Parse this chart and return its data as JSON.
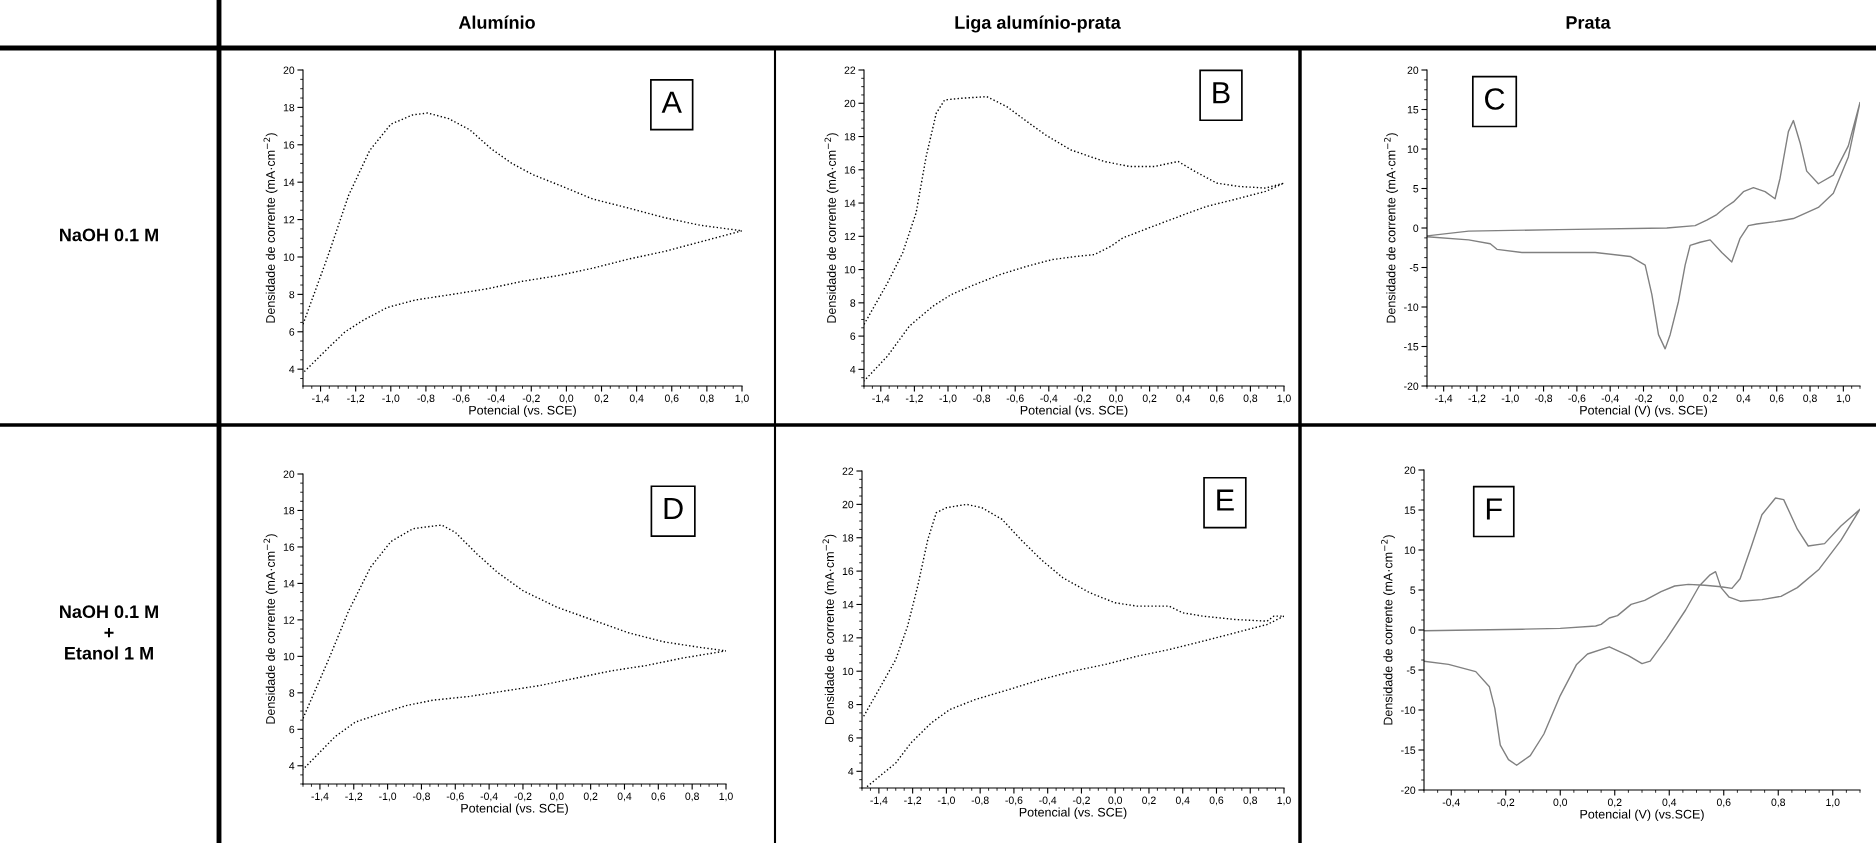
{
  "chart_data": [
    {
      "type": "line",
      "title": "Alumínio",
      "xlabel": "Potencial (vs. SCE)",
      "ylabel": "Densidade de corrente (mA·cm$^{−2}$)",
      "annotations": [
        "A",
        "NaOH 0.1 M"
      ],
      "line_style": "dotted",
      "xlim": [
        -1.5,
        1.0
      ],
      "ylim": [
        3.1,
        20
      ],
      "xticks": [
        {
          "value": -1.4,
          "label": "-1,4"
        },
        {
          "value": -1.2,
          "label": "-1,2"
        },
        {
          "value": -1.0,
          "label": "-1,0"
        },
        {
          "value": -0.8,
          "label": "-0,8"
        },
        {
          "value": -0.6,
          "label": "-0,6"
        },
        {
          "value": -0.4,
          "label": "-0,4"
        },
        {
          "value": -0.2,
          "label": "-0,2"
        },
        {
          "value": 0.0,
          "label": "0,0"
        },
        {
          "value": 0.2,
          "label": "0,2"
        },
        {
          "value": 0.4,
          "label": "0,4"
        },
        {
          "value": 0.6,
          "label": "0,6"
        },
        {
          "value": 0.8,
          "label": "0,8"
        },
        {
          "value": 1.0,
          "label": "1,0"
        }
      ],
      "yticks": [
        4,
        6,
        8,
        10,
        12,
        14,
        16,
        18,
        20
      ],
      "series": [
        {
          "color": "#000000",
          "x": [
            -1.5,
            -1.36,
            -1.24,
            -1.12,
            -1.0,
            -0.875,
            -0.79,
            -0.67,
            -0.55,
            -0.43,
            -0.31,
            -0.19,
            -0.03,
            0.15,
            0.36,
            0.56,
            0.76,
            1.0,
            0.76,
            0.56,
            0.36,
            0.15,
            -0.05,
            -0.25,
            -0.45,
            -0.65,
            -0.86,
            -1.02,
            -1.16,
            -1.26,
            -1.36,
            -1.5
          ],
          "values": [
            6.4,
            10.0,
            13.3,
            15.7,
            17.1,
            17.6,
            17.7,
            17.4,
            16.8,
            15.8,
            15.0,
            14.4,
            13.8,
            13.1,
            12.6,
            12.1,
            11.7,
            11.4,
            10.8,
            10.3,
            9.9,
            9.4,
            9.0,
            8.7,
            8.3,
            8.0,
            7.7,
            7.3,
            6.6,
            6.0,
            5.1,
            3.8
          ]
        }
      ]
    },
    {
      "type": "line",
      "title": "Liga alumínio-prata",
      "xlabel": "Potencial (vs. SCE)",
      "ylabel": "Densidade de corrente (mA·cm$^{−2}$)",
      "annotations": [
        "B"
      ],
      "line_style": "dotted",
      "xlim": [
        -1.5,
        1.0
      ],
      "ylim": [
        3,
        22
      ],
      "xticks": [
        {
          "value": -1.4,
          "label": "-1,4"
        },
        {
          "value": -1.2,
          "label": "-1,2"
        },
        {
          "value": -1.0,
          "label": "-1,0"
        },
        {
          "value": -0.8,
          "label": "-0,8"
        },
        {
          "value": -0.6,
          "label": "-0,6"
        },
        {
          "value": -0.4,
          "label": "-0,4"
        },
        {
          "value": -0.2,
          "label": "-0,2"
        },
        {
          "value": 0.0,
          "label": "0,0"
        },
        {
          "value": 0.2,
          "label": "0,2"
        },
        {
          "value": 0.4,
          "label": "0,4"
        },
        {
          "value": 0.6,
          "label": "0,6"
        },
        {
          "value": 0.8,
          "label": "0,8"
        },
        {
          "value": 1.0,
          "label": "1,0"
        }
      ],
      "yticks": [
        4,
        6,
        8,
        10,
        12,
        14,
        16,
        18,
        20,
        22
      ],
      "series": [
        {
          "color": "#000000",
          "x": [
            -1.5,
            -1.36,
            -1.27,
            -1.19,
            -1.13,
            -1.07,
            -1.02,
            -0.92,
            -0.77,
            -0.65,
            -0.53,
            -0.42,
            -0.27,
            -0.07,
            0.08,
            0.23,
            0.37,
            0.47,
            0.6,
            0.73,
            0.89,
            1.0,
            0.89,
            0.7,
            0.54,
            0.43,
            0.22,
            0.04,
            -0.03,
            -0.13,
            -0.23,
            -0.38,
            -0.53,
            -0.69,
            -0.84,
            -0.98,
            -1.09,
            -1.23,
            -1.36,
            -1.5
          ],
          "values": [
            6.7,
            9.2,
            11.0,
            13.4,
            16.8,
            19.4,
            20.2,
            20.3,
            20.4,
            19.8,
            18.9,
            18.1,
            17.2,
            16.5,
            16.2,
            16.2,
            16.5,
            15.9,
            15.2,
            15.0,
            14.9,
            15.2,
            14.7,
            14.2,
            13.8,
            13.4,
            12.6,
            11.9,
            11.4,
            10.9,
            10.8,
            10.6,
            10.2,
            9.7,
            9.1,
            8.5,
            7.8,
            6.6,
            4.8,
            3.3
          ]
        }
      ]
    },
    {
      "type": "line",
      "title": "Prata",
      "xlabel": "Potencial (V) (vs. SCE)",
      "ylabel": "Densidade de corrente (mA·cm$^{−2}$)",
      "annotations": [
        "C"
      ],
      "line_style": "solid",
      "xlim": [
        -1.5,
        1.1
      ],
      "ylim": [
        -20,
        20
      ],
      "xticks": [
        {
          "value": -1.4,
          "label": "-1,4"
        },
        {
          "value": -1.2,
          "label": "-1,2"
        },
        {
          "value": -1.0,
          "label": "-1,0"
        },
        {
          "value": -0.8,
          "label": "-0,8"
        },
        {
          "value": -0.6,
          "label": "-0,6"
        },
        {
          "value": -0.4,
          "label": "-0,4"
        },
        {
          "value": -0.2,
          "label": "-0,2"
        },
        {
          "value": 0.0,
          "label": "0,0"
        },
        {
          "value": 0.2,
          "label": "0,2"
        },
        {
          "value": 0.4,
          "label": "0,4"
        },
        {
          "value": 0.6,
          "label": "0,6"
        },
        {
          "value": 0.8,
          "label": "0,8"
        },
        {
          "value": 1.0,
          "label": "1,0"
        }
      ],
      "yticks": [
        -20,
        -15,
        -10,
        -5,
        0,
        5,
        10,
        15,
        20
      ],
      "series": [
        {
          "color": "#808080",
          "x": [
            -1.5,
            -1.25,
            -0.71,
            -0.06,
            0.11,
            0.18,
            0.24,
            0.29,
            0.34,
            0.4,
            0.46,
            0.53,
            0.59,
            0.62,
            0.67,
            0.7,
            0.74,
            0.78,
            0.85,
            0.94,
            1.03,
            1.1,
            1.03,
            0.94,
            0.85,
            0.7,
            0.59,
            0.48,
            0.43,
            0.38,
            0.33,
            0.27,
            0.2,
            0.14,
            0.08,
            0.05,
            0.01,
            -0.04,
            -0.07,
            -0.11,
            -0.15,
            -0.19,
            -0.28,
            -0.49,
            -0.93,
            -1.08,
            -1.12,
            -1.25,
            -1.5
          ],
          "values": [
            -1.0,
            -0.4,
            -0.2,
            0.0,
            0.3,
            1.0,
            1.7,
            2.6,
            3.3,
            4.6,
            5.1,
            4.6,
            3.7,
            6.3,
            12.2,
            13.6,
            10.8,
            7.2,
            5.6,
            6.7,
            10.4,
            15.9,
            9.0,
            4.4,
            2.6,
            1.2,
            0.8,
            0.5,
            0.3,
            -1.3,
            -4.3,
            -3.1,
            -1.5,
            -1.8,
            -2.2,
            -4.7,
            -9.3,
            -13.5,
            -15.3,
            -13.5,
            -8.4,
            -4.7,
            -3.6,
            -3.1,
            -3.1,
            -2.7,
            -2.0,
            -1.5,
            -1.1
          ]
        }
      ]
    },
    {
      "type": "line",
      "xlabel": "Potencial (vs. SCE)",
      "ylabel": "Densidade de corrente (mA·cm$^{−2}$)",
      "annotations": [
        "D",
        "NaOH 0.1 M\n+\nEtanol 1 M"
      ],
      "line_style": "dotted",
      "xlim": [
        -1.5,
        1.0
      ],
      "ylim": [
        3,
        20
      ],
      "xticks": [
        {
          "value": -1.4,
          "label": "-1,4"
        },
        {
          "value": -1.2,
          "label": "-1,2"
        },
        {
          "value": -1.0,
          "label": "-1,0"
        },
        {
          "value": -0.8,
          "label": "-0,8"
        },
        {
          "value": -0.6,
          "label": "-0,6"
        },
        {
          "value": -0.4,
          "label": "-0,4"
        },
        {
          "value": -0.2,
          "label": "-0,2"
        },
        {
          "value": 0.0,
          "label": "0,0"
        },
        {
          "value": 0.2,
          "label": "0,2"
        },
        {
          "value": 0.4,
          "label": "0,4"
        },
        {
          "value": 0.6,
          "label": "0,6"
        },
        {
          "value": 0.8,
          "label": "0,8"
        },
        {
          "value": 1.0,
          "label": "1,0"
        }
      ],
      "yticks": [
        4,
        6,
        8,
        10,
        12,
        14,
        16,
        18,
        20
      ],
      "series": [
        {
          "color": "#000000",
          "x": [
            -1.5,
            -1.35,
            -1.23,
            -1.1,
            -0.98,
            -0.85,
            -0.77,
            -0.68,
            -0.6,
            -0.47,
            -0.35,
            -0.2,
            0.0,
            0.21,
            0.42,
            0.63,
            0.84,
            1.0,
            0.74,
            0.53,
            0.32,
            0.11,
            -0.1,
            -0.31,
            -0.52,
            -0.73,
            -0.89,
            -1.06,
            -1.19,
            -1.31,
            -1.5
          ],
          "values": [
            6.6,
            9.8,
            12.5,
            14.9,
            16.3,
            17.0,
            17.1,
            17.2,
            16.8,
            15.6,
            14.6,
            13.6,
            12.7,
            12.0,
            11.3,
            10.8,
            10.5,
            10.3,
            9.9,
            9.5,
            9.2,
            8.8,
            8.4,
            8.1,
            7.8,
            7.6,
            7.3,
            6.8,
            6.4,
            5.6,
            3.8
          ]
        }
      ]
    },
    {
      "type": "line",
      "xlabel": "Potencial (vs. SCE)",
      "ylabel": "Densidade de corrente (mA·cm$^{−2}$)",
      "annotations": [
        "E"
      ],
      "line_style": "dotted",
      "xlim": [
        -1.5,
        1.0
      ],
      "ylim": [
        3,
        22
      ],
      "xticks": [
        {
          "value": -1.4,
          "label": "-1,4"
        },
        {
          "value": -1.2,
          "label": "-1,2"
        },
        {
          "value": -1.0,
          "label": "-1,0"
        },
        {
          "value": -0.8,
          "label": "-0,8"
        },
        {
          "value": -0.6,
          "label": "-0,6"
        },
        {
          "value": -0.4,
          "label": "-0,4"
        },
        {
          "value": -0.2,
          "label": "-0,2"
        },
        {
          "value": 0.0,
          "label": "0,0"
        },
        {
          "value": 0.2,
          "label": "0,2"
        },
        {
          "value": 0.4,
          "label": "0,4"
        },
        {
          "value": 0.6,
          "label": "0,6"
        },
        {
          "value": 0.8,
          "label": "0,8"
        },
        {
          "value": 1.0,
          "label": "1,0"
        }
      ],
      "yticks": [
        4,
        6,
        8,
        10,
        12,
        14,
        16,
        18,
        20,
        22
      ],
      "series": [
        {
          "color": "#000000",
          "x": [
            -1.49,
            -1.4,
            -1.3,
            -1.23,
            -1.17,
            -1.11,
            -1.06,
            -1.0,
            -0.88,
            -0.79,
            -0.67,
            -0.56,
            -0.44,
            -0.31,
            -0.15,
            0.0,
            0.13,
            0.32,
            0.4,
            0.52,
            0.71,
            0.9,
            0.94,
            1.0,
            0.9,
            0.71,
            0.52,
            0.32,
            0.13,
            -0.06,
            -0.25,
            -0.44,
            -0.63,
            -0.83,
            -0.98,
            -1.09,
            -1.21,
            -1.3,
            -1.48
          ],
          "values": [
            7.3,
            8.9,
            10.7,
            12.7,
            15.1,
            17.9,
            19.5,
            19.8,
            20.0,
            19.8,
            19.1,
            17.9,
            16.7,
            15.6,
            14.7,
            14.1,
            13.9,
            13.9,
            13.5,
            13.3,
            13.1,
            13.0,
            13.3,
            13.3,
            12.8,
            12.3,
            11.8,
            11.3,
            10.9,
            10.4,
            10.0,
            9.5,
            8.9,
            8.3,
            7.7,
            6.9,
            5.7,
            4.5,
            3.0
          ]
        }
      ]
    },
    {
      "type": "line",
      "xlabel": "Potencial (V) (vs.SCE)",
      "ylabel": "Densidade de corrente (mA·cm$^{−2}$)",
      "annotations": [
        "F"
      ],
      "line_style": "solid",
      "xlim": [
        -0.5,
        1.1
      ],
      "ylim": [
        -20,
        20
      ],
      "xticks": [
        {
          "value": -0.4,
          "label": "-0,4"
        },
        {
          "value": -0.2,
          "label": "-0,2"
        },
        {
          "value": 0.0,
          "label": "0,0"
        },
        {
          "value": 0.2,
          "label": "0,2"
        },
        {
          "value": 0.4,
          "label": "0,4"
        },
        {
          "value": 0.6,
          "label": "0,6"
        },
        {
          "value": 0.8,
          "label": "0,8"
        },
        {
          "value": 1.0,
          "label": "1,0"
        }
      ],
      "yticks": [
        -20,
        -15,
        -10,
        -5,
        0,
        5,
        10,
        15,
        20
      ],
      "series": [
        {
          "color": "#808080",
          "x": [
            -0.5,
            -0.14,
            0.0,
            0.13,
            0.15,
            0.18,
            0.21,
            0.26,
            0.31,
            0.37,
            0.42,
            0.47,
            0.53,
            0.59,
            0.63,
            0.66,
            0.7,
            0.74,
            0.79,
            0.82,
            0.87,
            0.91,
            0.97,
            1.03,
            1.1,
            1.03,
            0.95,
            0.87,
            0.81,
            0.74,
            0.66,
            0.62,
            0.59,
            0.57,
            0.55,
            0.51,
            0.46,
            0.39,
            0.33,
            0.3,
            0.25,
            0.18,
            0.1,
            0.06,
            0.0,
            -0.06,
            -0.11,
            -0.16,
            -0.19,
            -0.22,
            -0.24,
            -0.26,
            -0.31,
            -0.41,
            -0.5
          ],
          "values": [
            -0.1,
            0.1,
            0.2,
            0.5,
            0.7,
            1.5,
            1.8,
            3.2,
            3.7,
            4.8,
            5.5,
            5.7,
            5.6,
            5.4,
            5.2,
            6.4,
            10.3,
            14.4,
            16.5,
            16.3,
            12.6,
            10.5,
            10.8,
            13.0,
            15.1,
            11.2,
            7.6,
            5.3,
            4.2,
            3.8,
            3.6,
            4.1,
            5.3,
            7.3,
            6.9,
            5.5,
            2.5,
            -1.1,
            -3.9,
            -4.2,
            -3.2,
            -2.1,
            -3.0,
            -4.3,
            -8.2,
            -13.0,
            -15.7,
            -16.9,
            -16.2,
            -14.4,
            -9.8,
            -7.1,
            -5.2,
            -4.3,
            -3.9
          ]
        }
      ]
    }
  ]
}
